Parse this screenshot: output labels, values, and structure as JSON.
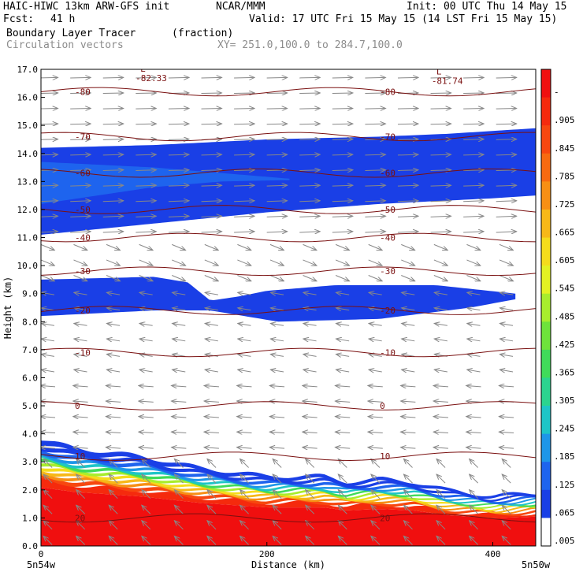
{
  "header": {
    "model": "HAIC-HIWC 13km ARW-GFS init",
    "org": "NCAR/MMM",
    "init": "Init: 00 UTC Thu 14 May 15",
    "fcst_label": "Fcst:",
    "fcst_value": "41 h",
    "valid": "Valid: 17 UTC Fri 15 May 15 (14 LST Fri 15 May 15)",
    "field": "Boundary Layer Tracer",
    "field_units": "(fraction)",
    "vectors": "Circulation vectors",
    "xy_range": "XY= 251.0,100.0 to 284.7,100.0"
  },
  "chart_data": {
    "type": "heatmap",
    "xlabel": "Distance (km)",
    "ylabel": "Height (km)",
    "xlim": [
      0,
      438
    ],
    "ylim": [
      0,
      17
    ],
    "x_ticks": [
      0,
      200,
      400
    ],
    "y_ticks": [
      "0.0",
      "1.0",
      "2.0",
      "3.0",
      "4.0",
      "5.0",
      "6.0",
      "7.0",
      "8.0",
      "9.0",
      "10.0",
      "11.0",
      "12.0",
      "13.0",
      "14.0",
      "15.0",
      "16.0",
      "17.0"
    ],
    "x_endpoints": {
      "left": "5n54w",
      "right": "5n50w"
    },
    "colorbar": {
      "labels": [
        "-",
        ".905",
        ".845",
        ".785",
        ".725",
        ".665",
        ".605",
        ".545",
        ".485",
        ".425",
        ".365",
        ".305",
        ".245",
        ".185",
        ".125",
        ".065",
        ".005"
      ],
      "colors": [
        "#f00f0f",
        "#f52a0d",
        "#f7470f",
        "#f76a10",
        "#f78f14",
        "#f7b818",
        "#f5dc1c",
        "#e3f223",
        "#a8ed2d",
        "#6ee33b",
        "#40db5a",
        "#2bd48f",
        "#1ec5c7",
        "#1e96e8",
        "#1e64ee",
        "#1a3fe6",
        "#ffffff"
      ]
    },
    "tracer_layers": [
      {
        "name": "upper",
        "value": 0.04,
        "top": [
          [
            0,
            14.2
          ],
          [
            100,
            14.3
          ],
          [
            200,
            14.5
          ],
          [
            300,
            14.6
          ],
          [
            360,
            14.7
          ],
          [
            438,
            14.9
          ]
        ],
        "bottom": [
          [
            0,
            11.1
          ],
          [
            100,
            11.5
          ],
          [
            200,
            11.9
          ],
          [
            300,
            12.2
          ],
          [
            400,
            12.4
          ],
          [
            438,
            12.5
          ]
        ]
      },
      {
        "name": "upper_core",
        "value": 0.09,
        "top": [
          [
            0,
            13.7
          ],
          [
            100,
            13.5
          ],
          [
            160,
            13.3
          ],
          [
            220,
            13.1
          ]
        ],
        "bottom": [
          [
            0,
            12.2
          ],
          [
            100,
            12.8
          ],
          [
            160,
            13.0
          ],
          [
            220,
            13.05
          ]
        ]
      },
      {
        "name": "middle",
        "value": 0.05,
        "top": [
          [
            0,
            9.5
          ],
          [
            100,
            9.6
          ],
          [
            130,
            9.4
          ],
          [
            150,
            8.75
          ],
          [
            175,
            8.9
          ],
          [
            200,
            9.1
          ],
          [
            260,
            9.3
          ],
          [
            350,
            9.3
          ],
          [
            420,
            9.0
          ]
        ],
        "bottom": [
          [
            0,
            8.2
          ],
          [
            50,
            8.3
          ],
          [
            100,
            8.4
          ],
          [
            150,
            8.4
          ],
          [
            210,
            8.0
          ],
          [
            300,
            8.1
          ],
          [
            380,
            8.5
          ],
          [
            420,
            8.8
          ]
        ]
      },
      {
        "name": "boundary_layer_top",
        "value": 0.005,
        "top": [
          [
            0,
            3.8
          ],
          [
            30,
            3.5
          ],
          [
            90,
            3.2
          ],
          [
            140,
            2.8
          ],
          [
            200,
            2.5
          ],
          [
            250,
            2.5
          ],
          [
            270,
            2.3
          ],
          [
            300,
            2.4
          ],
          [
            330,
            2.3
          ],
          [
            360,
            2.0
          ],
          [
            400,
            1.8
          ],
          [
            438,
            1.9
          ]
        ]
      }
    ],
    "temperature_contours": [
      {
        "label": "-80",
        "height": 16.2
      },
      {
        "label": "-70",
        "height": 14.6
      },
      {
        "label": "-60",
        "height": 13.3
      },
      {
        "label": "-50",
        "height": 12.0
      },
      {
        "label": "-40",
        "height": 11.0
      },
      {
        "label": "-30",
        "height": 9.8
      },
      {
        "label": "-20",
        "height": 8.4
      },
      {
        "label": "-10",
        "height": 6.9
      },
      {
        "label": "0",
        "height": 5.0
      },
      {
        "label": "10",
        "height": 3.2
      },
      {
        "label": "20",
        "height": 1.0
      }
    ],
    "lows": [
      {
        "label": "L",
        "value": "-82.33",
        "x": 88,
        "y": 16.8
      },
      {
        "label": "L",
        "value": "-81.74",
        "x": 350,
        "y": 16.7
      }
    ]
  }
}
